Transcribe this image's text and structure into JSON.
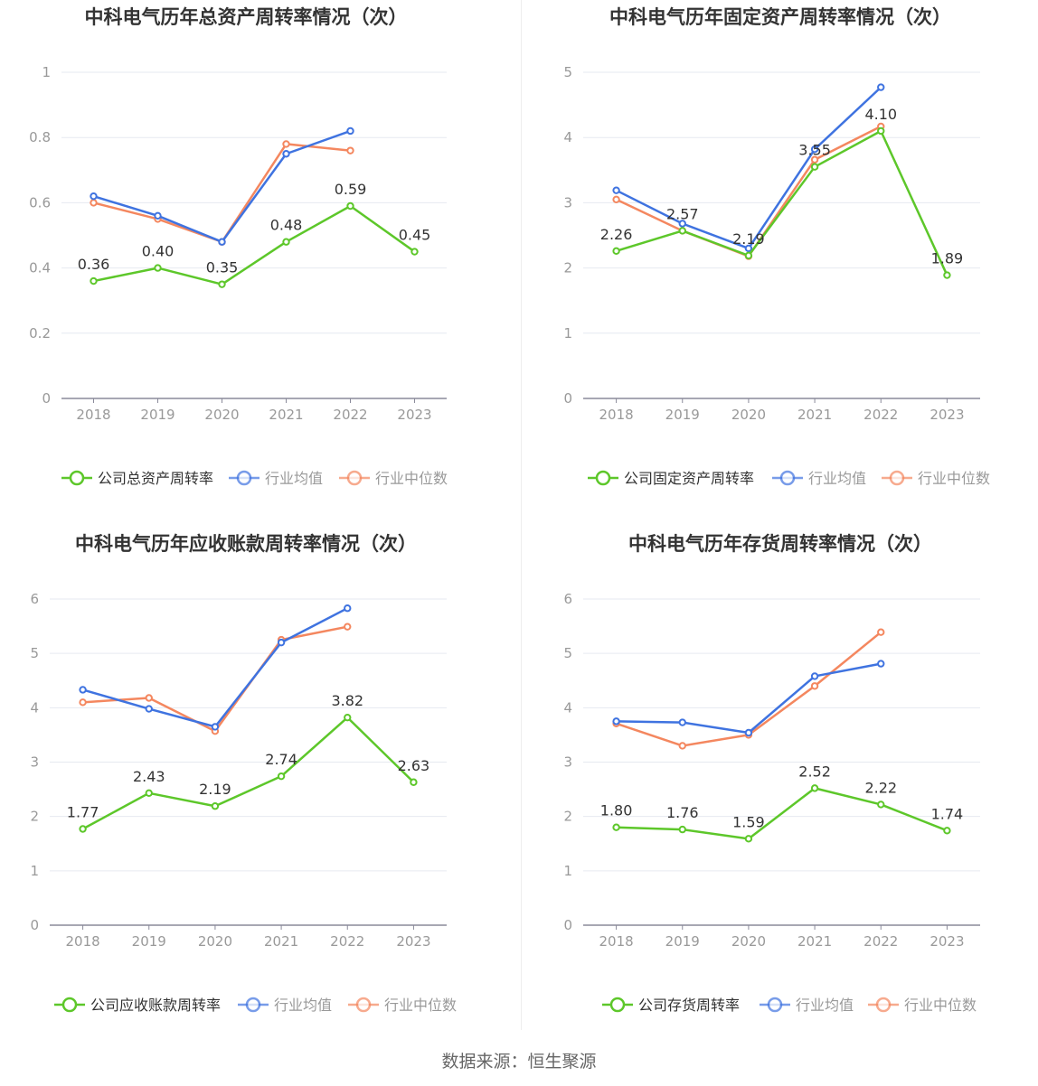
{
  "source": "数据来源：恒生聚源",
  "colors": {
    "company": "#5dc72a",
    "avg": "#3f73e0",
    "median": "#f4875f"
  },
  "chart_data": [
    {
      "type": "line",
      "title": "中科电气历年总资产周转率情况（次）",
      "categories": [
        "2018",
        "2019",
        "2020",
        "2021",
        "2022",
        "2023"
      ],
      "ylim": [
        0,
        1
      ],
      "yticks": [
        "0",
        "0.2",
        "0.4",
        "0.6",
        "0.8",
        "1"
      ],
      "series": [
        {
          "name": "公司总资产周转率",
          "values": [
            0.36,
            0.4,
            0.35,
            0.48,
            0.59,
            0.45
          ],
          "labels": [
            "0.36",
            "0.40",
            "0.35",
            "0.48",
            "0.59",
            "0.45"
          ]
        },
        {
          "name": "行业均值",
          "values": [
            0.62,
            0.56,
            0.48,
            0.75,
            0.82,
            null
          ]
        },
        {
          "name": "行业中位数",
          "values": [
            0.6,
            0.55,
            0.48,
            0.78,
            0.76,
            null
          ]
        }
      ],
      "grid": true,
      "legend": "bottom"
    },
    {
      "type": "line",
      "title": "中科电气历年固定资产周转率情况（次）",
      "categories": [
        "2018",
        "2019",
        "2020",
        "2021",
        "2022",
        "2023"
      ],
      "ylim": [
        0,
        5
      ],
      "yticks": [
        "0",
        "1",
        "2",
        "3",
        "4",
        "5"
      ],
      "series": [
        {
          "name": "公司固定资产周转率",
          "values": [
            2.26,
            2.57,
            2.19,
            3.55,
            4.1,
            1.89
          ],
          "labels": [
            "2.26",
            "2.57",
            "2.19",
            "3.55",
            "4.10",
            "1.89"
          ]
        },
        {
          "name": "行业均值",
          "values": [
            3.19,
            2.68,
            2.3,
            3.82,
            4.77,
            null
          ]
        },
        {
          "name": "行业中位数",
          "values": [
            3.05,
            2.57,
            2.18,
            3.66,
            4.17,
            null
          ]
        }
      ],
      "grid": true,
      "legend": "bottom"
    },
    {
      "type": "line",
      "title": "中科电气历年应收账款周转率情况（次）",
      "categories": [
        "2018",
        "2019",
        "2020",
        "2021",
        "2022",
        "2023"
      ],
      "ylim": [
        0,
        6
      ],
      "yticks": [
        "0",
        "1",
        "2",
        "3",
        "4",
        "5",
        "6"
      ],
      "series": [
        {
          "name": "公司应收账款周转率",
          "values": [
            1.77,
            2.43,
            2.19,
            2.74,
            3.82,
            2.63
          ],
          "labels": [
            "1.77",
            "2.43",
            "2.19",
            "2.74",
            "3.82",
            "2.63"
          ]
        },
        {
          "name": "行业均值",
          "values": [
            4.33,
            3.98,
            3.65,
            5.2,
            5.83,
            null
          ]
        },
        {
          "name": "行业中位数",
          "values": [
            4.1,
            4.18,
            3.57,
            5.25,
            5.49,
            null
          ]
        }
      ],
      "grid": true,
      "legend": "bottom"
    },
    {
      "type": "line",
      "title": "中科电气历年存货周转率情况（次）",
      "categories": [
        "2018",
        "2019",
        "2020",
        "2021",
        "2022",
        "2023"
      ],
      "ylim": [
        0,
        6
      ],
      "yticks": [
        "0",
        "1",
        "2",
        "3",
        "4",
        "5",
        "6"
      ],
      "series": [
        {
          "name": "公司存货周转率",
          "values": [
            1.8,
            1.76,
            1.59,
            2.52,
            2.22,
            1.74
          ],
          "labels": [
            "1.80",
            "1.76",
            "1.59",
            "2.52",
            "2.22",
            "1.74"
          ]
        },
        {
          "name": "行业均值",
          "values": [
            3.75,
            3.73,
            3.54,
            4.58,
            4.81,
            null
          ]
        },
        {
          "name": "行业中位数",
          "values": [
            3.71,
            3.3,
            3.5,
            4.4,
            5.39,
            null
          ]
        }
      ],
      "grid": true,
      "legend": "bottom"
    }
  ]
}
